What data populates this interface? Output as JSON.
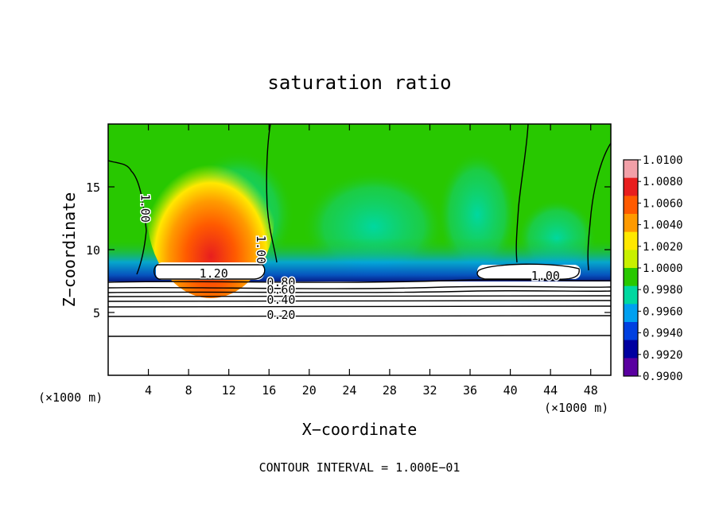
{
  "chart_data": {
    "type": "heatmap",
    "title": "saturation ratio",
    "xlabel": "X−coordinate",
    "ylabel": "Z−coordinate",
    "x_unit_left": "(×1000 m)",
    "x_unit_right": "(×1000 m)",
    "footer": "CONTOUR INTERVAL = 1.000E−01",
    "xlim": [
      0,
      50
    ],
    "ylim": [
      0,
      20
    ],
    "x_ticks": [
      4,
      8,
      12,
      16,
      20,
      24,
      28,
      32,
      36,
      40,
      44,
      48
    ],
    "x_tick_labels": [
      "4",
      "8",
      "12",
      "16",
      "20",
      "24",
      "28",
      "32",
      "36",
      "40",
      "44",
      "48"
    ],
    "y_ticks": [
      5,
      10,
      15
    ],
    "y_tick_labels": [
      "5",
      "10",
      "15"
    ],
    "colorbar": {
      "min": 0.99,
      "max": 1.01,
      "labels": [
        "1.0100",
        "1.0080",
        "1.0060",
        "1.0040",
        "1.0020",
        "1.0000",
        "0.9980",
        "0.9960",
        "0.9940",
        "0.9920",
        "0.9900"
      ],
      "colors": [
        "#f2a0a8",
        "#e81e1e",
        "#ff5a00",
        "#ff9a00",
        "#ffe800",
        "#c8f000",
        "#28c800",
        "#00d8a0",
        "#00a0f0",
        "#0040e0",
        "#0000a0",
        "#5a00a0"
      ]
    },
    "contour_labels": [
      {
        "text": "1.00",
        "x": 3.3,
        "y": 13.3,
        "rotate": 90
      },
      {
        "text": "1.20",
        "x": 10.5,
        "y": 7.8
      },
      {
        "text": "1.00",
        "x": 14.8,
        "y": 10.0,
        "rotate": 90
      },
      {
        "text": "0.80",
        "x": 17.2,
        "y": 7.1
      },
      {
        "text": "0.60",
        "x": 17.2,
        "y": 6.5
      },
      {
        "text": "0.40",
        "x": 17.2,
        "y": 5.7
      },
      {
        "text": "0.20",
        "x": 17.2,
        "y": 4.5
      },
      {
        "text": "1.00",
        "x": 43.5,
        "y": 7.6
      }
    ],
    "grid": false
  }
}
